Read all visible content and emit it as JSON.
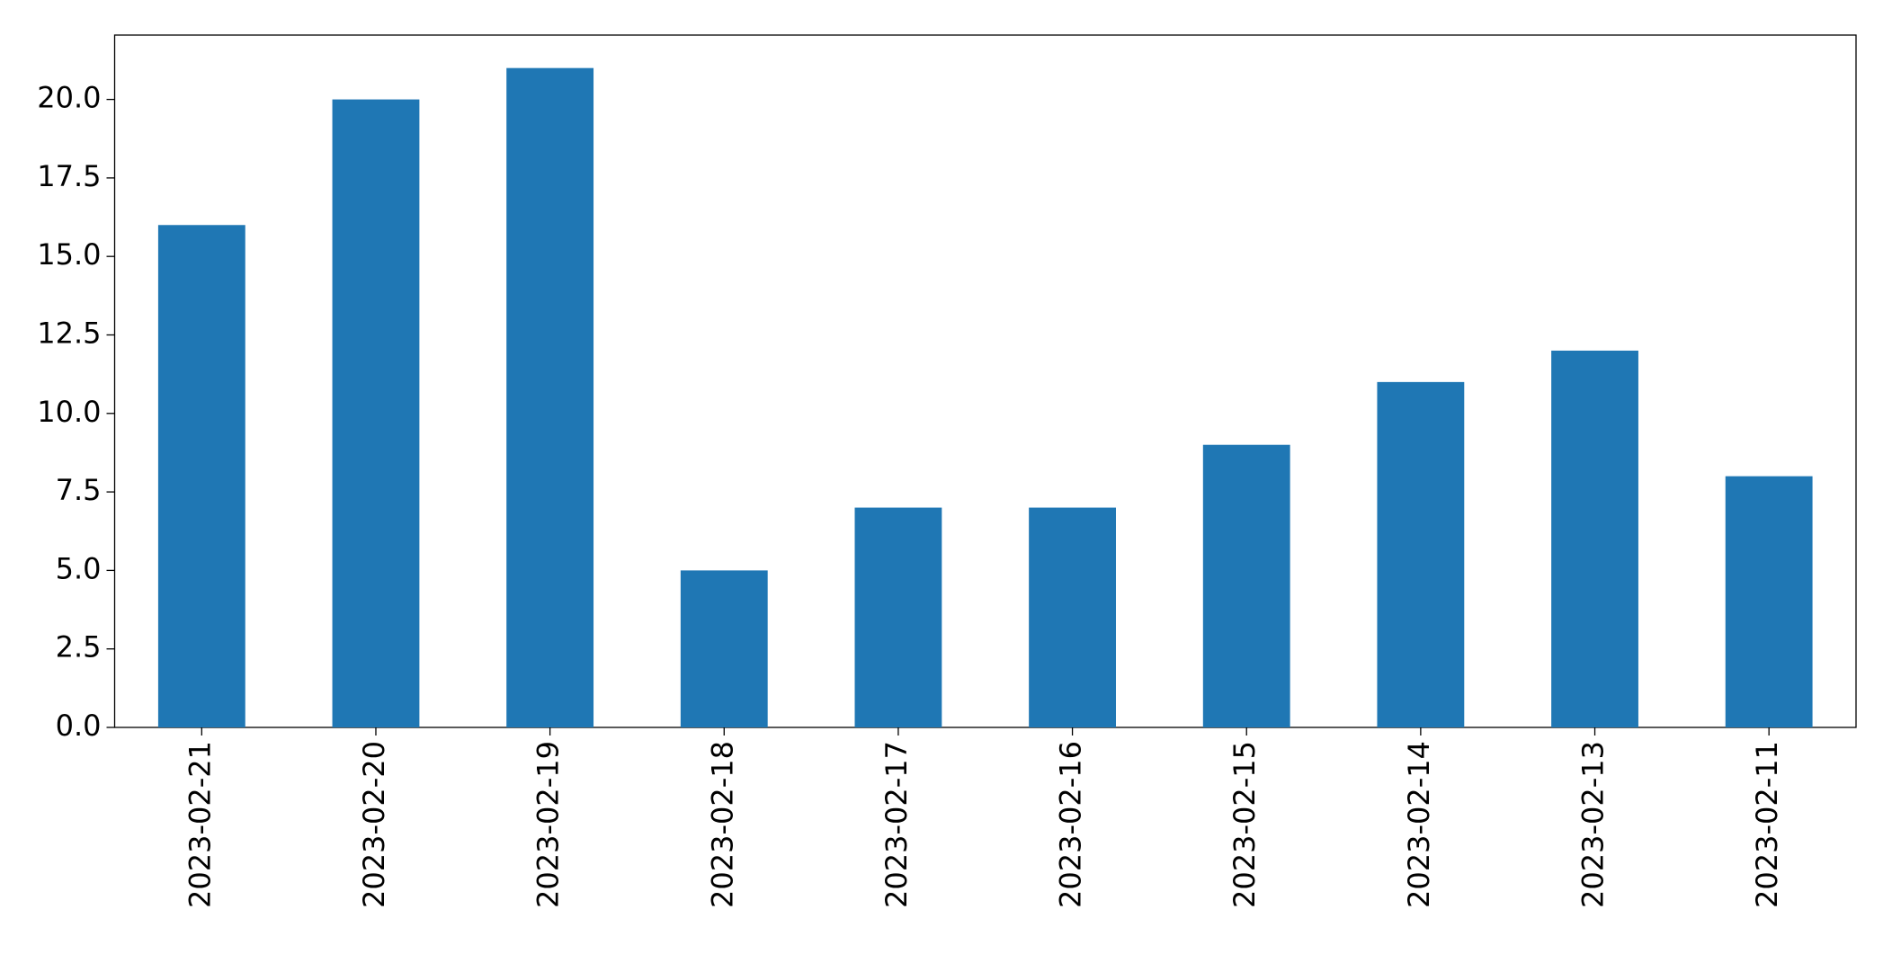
{
  "chart_data": {
    "type": "bar",
    "categories": [
      "2023-02-21",
      "2023-02-20",
      "2023-02-19",
      "2023-02-18",
      "2023-02-17",
      "2023-02-16",
      "2023-02-15",
      "2023-02-14",
      "2023-02-13",
      "2023-02-11"
    ],
    "values": [
      16,
      20,
      21,
      5,
      7,
      7,
      9,
      11,
      12,
      8
    ],
    "color": "#1f77b4",
    "ylim": [
      0,
      22.05
    ],
    "yticks": [
      {
        "value": 0,
        "label": "0.0"
      },
      2.5,
      {
        "value": 5,
        "label": "5.0"
      },
      7.5,
      {
        "value": 10,
        "label": "10.0"
      },
      12.5,
      {
        "value": 15,
        "label": "15.0"
      },
      17.5,
      {
        "value": 20,
        "label": "20.0"
      }
    ],
    "grid": false
  }
}
